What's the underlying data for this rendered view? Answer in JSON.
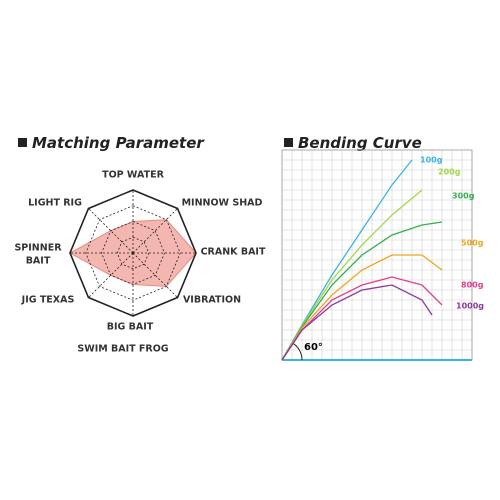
{
  "chart_data": [
    {
      "type": "radar",
      "title": "Matching Parameter",
      "categories": [
        "TOP WATER",
        "MINNOW SHAD",
        "CRANK BAIT",
        "VIBRATION",
        [
          "BIG BAIT",
          "SWIM BAIT FROG"
        ],
        "JIG TEXAS",
        [
          "SPINNER",
          "BAIT"
        ],
        "LIGHT RIG"
      ],
      "values": [
        2,
        3,
        4,
        3,
        2,
        2,
        4,
        2
      ],
      "rlim": [
        0,
        4
      ],
      "rticks": [
        1,
        2,
        3,
        4
      ],
      "color": "#f2a9a2"
    },
    {
      "type": "line",
      "title": "Bending Curve",
      "annotations": [
        "60°"
      ],
      "xlim": [
        0,
        19
      ],
      "ylim": [
        0,
        21
      ],
      "grid": true,
      "series": [
        {
          "name": "100g",
          "color": "#3bb4e6",
          "x": [
            0,
            2,
            5,
            8,
            11,
            13
          ],
          "values": [
            0,
            3.5,
            8.5,
            13,
            17.5,
            20
          ]
        },
        {
          "name": "200g",
          "color": "#a6d64a",
          "x": [
            0,
            2,
            5,
            8,
            11,
            14
          ],
          "values": [
            0,
            3.4,
            8,
            11.5,
            14.5,
            17
          ]
        },
        {
          "name": "300g",
          "color": "#36b04a",
          "x": [
            0,
            2,
            5,
            8,
            11,
            14,
            16
          ],
          "values": [
            0,
            3.3,
            7.5,
            10.5,
            12.5,
            13.5,
            13.8
          ]
        },
        {
          "name": "500g",
          "color": "#f2a31f",
          "x": [
            0,
            2,
            5,
            8,
            11,
            14,
            16
          ],
          "values": [
            0,
            3.2,
            6.5,
            9,
            10.5,
            10.5,
            9
          ]
        },
        {
          "name": "800g",
          "color": "#e53f8c",
          "x": [
            0,
            2,
            5,
            8,
            11,
            14,
            16
          ],
          "values": [
            0,
            3,
            6,
            7.5,
            8.3,
            7.5,
            5.5
          ]
        },
        {
          "name": "1000g",
          "color": "#8a3b9e",
          "x": [
            0,
            2,
            5,
            8,
            11,
            14,
            15
          ],
          "values": [
            0,
            3,
            5.5,
            7,
            7.5,
            6,
            4.5
          ]
        }
      ]
    }
  ]
}
